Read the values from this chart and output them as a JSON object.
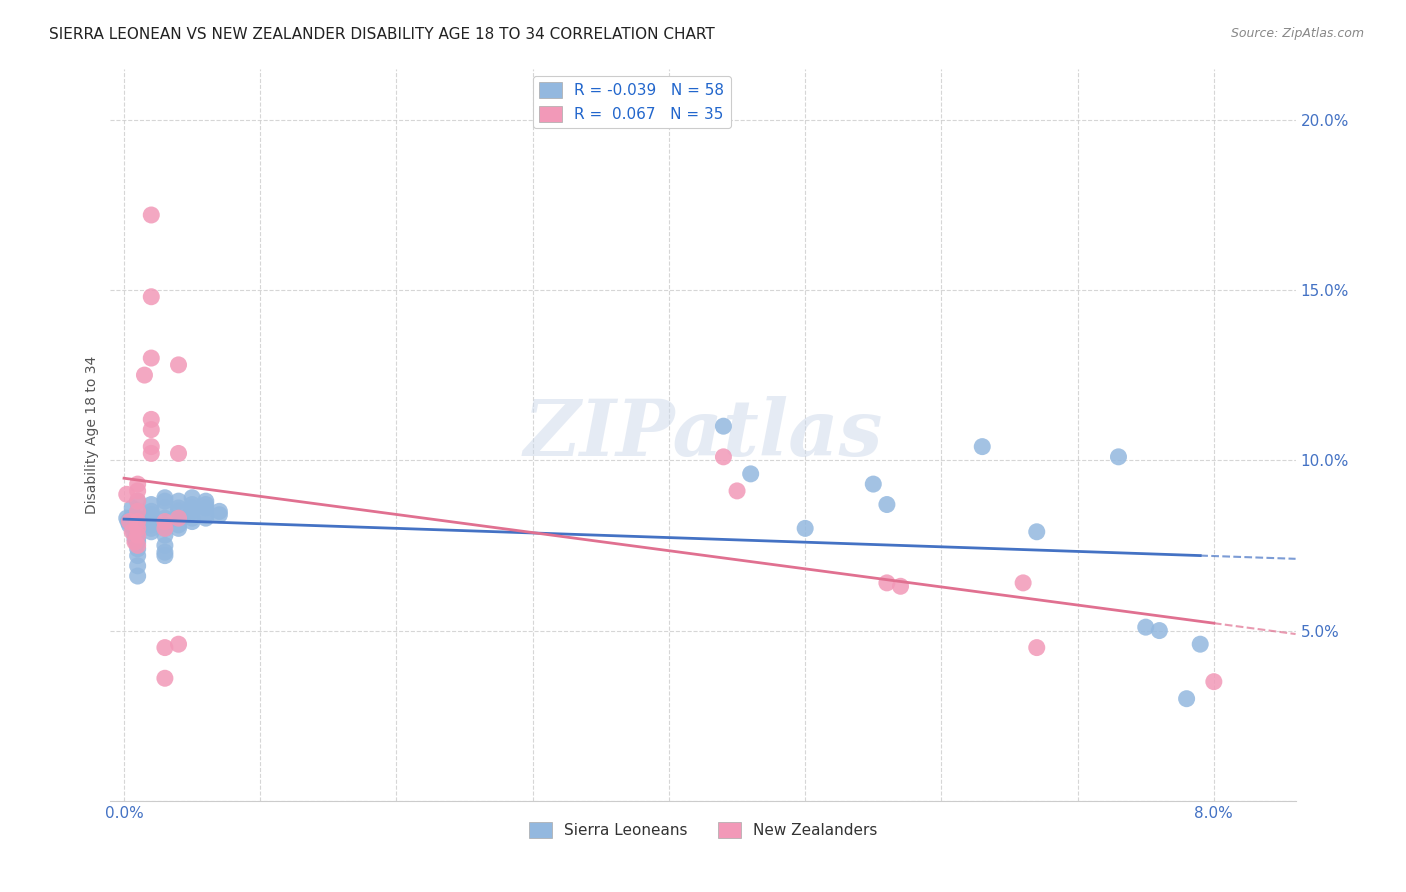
{
  "title": "SIERRA LEONEAN VS NEW ZEALANDER DISABILITY AGE 18 TO 34 CORRELATION CHART",
  "source": "Source: ZipAtlas.com",
  "ylabel": "Disability Age 18 to 34",
  "xlim": [
    -0.001,
    0.086
  ],
  "ylim": [
    0.0,
    0.215
  ],
  "x_tick_positions": [
    0.0,
    0.01,
    0.02,
    0.03,
    0.04,
    0.05,
    0.06,
    0.07,
    0.08
  ],
  "x_tick_labels": [
    "0.0%",
    "",
    "",
    "",
    "",
    "",
    "",
    "",
    "8.0%"
  ],
  "y_tick_positions": [
    0.0,
    0.05,
    0.1,
    0.15,
    0.2
  ],
  "y_tick_labels": [
    "",
    "5.0%",
    "10.0%",
    "15.0%",
    "20.0%"
  ],
  "watermark": "ZIPatlas",
  "blue_color": "#93b8df",
  "pink_color": "#f299b8",
  "blue_line_color": "#4472c4",
  "pink_line_color": "#e07090",
  "title_fontsize": 11,
  "axis_label_fontsize": 10,
  "tick_fontsize": 11,
  "legend_fontsize": 11,
  "sierra_leoneans": [
    [
      0.0002,
      0.083
    ],
    [
      0.0003,
      0.082
    ],
    [
      0.0004,
      0.081
    ],
    [
      0.0005,
      0.083
    ],
    [
      0.0006,
      0.086
    ],
    [
      0.0007,
      0.079
    ],
    [
      0.0008,
      0.077
    ],
    [
      0.0009,
      0.076
    ],
    [
      0.001,
      0.088
    ],
    [
      0.001,
      0.085
    ],
    [
      0.001,
      0.083
    ],
    [
      0.001,
      0.081
    ],
    [
      0.001,
      0.08
    ],
    [
      0.001,
      0.079
    ],
    [
      0.001,
      0.077
    ],
    [
      0.001,
      0.076
    ],
    [
      0.001,
      0.074
    ],
    [
      0.001,
      0.072
    ],
    [
      0.001,
      0.069
    ],
    [
      0.001,
      0.066
    ],
    [
      0.002,
      0.087
    ],
    [
      0.002,
      0.085
    ],
    [
      0.002,
      0.084
    ],
    [
      0.002,
      0.083
    ],
    [
      0.002,
      0.081
    ],
    [
      0.002,
      0.08
    ],
    [
      0.002,
      0.079
    ],
    [
      0.003,
      0.089
    ],
    [
      0.003,
      0.088
    ],
    [
      0.003,
      0.086
    ],
    [
      0.003,
      0.083
    ],
    [
      0.003,
      0.081
    ],
    [
      0.003,
      0.08
    ],
    [
      0.003,
      0.078
    ],
    [
      0.003,
      0.075
    ],
    [
      0.003,
      0.073
    ],
    [
      0.003,
      0.072
    ],
    [
      0.004,
      0.088
    ],
    [
      0.004,
      0.086
    ],
    [
      0.004,
      0.085
    ],
    [
      0.004,
      0.083
    ],
    [
      0.004,
      0.081
    ],
    [
      0.004,
      0.08
    ],
    [
      0.005,
      0.089
    ],
    [
      0.005,
      0.087
    ],
    [
      0.005,
      0.086
    ],
    [
      0.005,
      0.085
    ],
    [
      0.005,
      0.083
    ],
    [
      0.005,
      0.082
    ],
    [
      0.006,
      0.088
    ],
    [
      0.006,
      0.087
    ],
    [
      0.006,
      0.086
    ],
    [
      0.006,
      0.084
    ],
    [
      0.006,
      0.083
    ],
    [
      0.007,
      0.085
    ],
    [
      0.007,
      0.084
    ],
    [
      0.044,
      0.11
    ],
    [
      0.046,
      0.096
    ],
    [
      0.055,
      0.093
    ],
    [
      0.056,
      0.087
    ],
    [
      0.063,
      0.104
    ],
    [
      0.067,
      0.079
    ],
    [
      0.073,
      0.101
    ],
    [
      0.075,
      0.051
    ],
    [
      0.076,
      0.05
    ],
    [
      0.078,
      0.03
    ],
    [
      0.079,
      0.046
    ],
    [
      0.05,
      0.08
    ]
  ],
  "new_zealanders": [
    [
      0.0002,
      0.09
    ],
    [
      0.0004,
      0.082
    ],
    [
      0.0006,
      0.079
    ],
    [
      0.0008,
      0.076
    ],
    [
      0.001,
      0.093
    ],
    [
      0.001,
      0.091
    ],
    [
      0.001,
      0.088
    ],
    [
      0.001,
      0.085
    ],
    [
      0.001,
      0.082
    ],
    [
      0.001,
      0.08
    ],
    [
      0.001,
      0.078
    ],
    [
      0.001,
      0.075
    ],
    [
      0.0015,
      0.125
    ],
    [
      0.002,
      0.172
    ],
    [
      0.002,
      0.148
    ],
    [
      0.002,
      0.13
    ],
    [
      0.002,
      0.112
    ],
    [
      0.002,
      0.109
    ],
    [
      0.002,
      0.104
    ],
    [
      0.002,
      0.102
    ],
    [
      0.003,
      0.082
    ],
    [
      0.003,
      0.08
    ],
    [
      0.003,
      0.045
    ],
    [
      0.003,
      0.036
    ],
    [
      0.004,
      0.128
    ],
    [
      0.004,
      0.102
    ],
    [
      0.004,
      0.083
    ],
    [
      0.004,
      0.046
    ],
    [
      0.044,
      0.101
    ],
    [
      0.045,
      0.091
    ],
    [
      0.056,
      0.064
    ],
    [
      0.057,
      0.063
    ],
    [
      0.066,
      0.064
    ],
    [
      0.067,
      0.045
    ],
    [
      0.08,
      0.035
    ]
  ]
}
